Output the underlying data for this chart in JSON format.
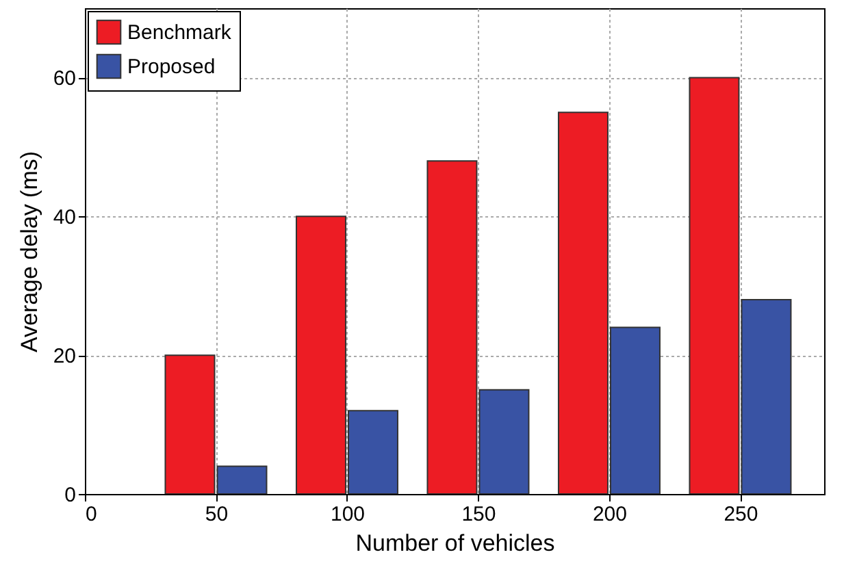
{
  "chart_data": {
    "type": "bar",
    "xlabel": "Number of vehicles",
    "ylabel": "Average delay (ms)",
    "x": [
      50,
      100,
      150,
      200,
      250
    ],
    "series": [
      {
        "name": "Benchmark",
        "color": "#ed1c24",
        "values": [
          20,
          40,
          48,
          55,
          60
        ]
      },
      {
        "name": "Proposed",
        "color": "#3953a4",
        "values": [
          4,
          12,
          15,
          24,
          28
        ]
      }
    ],
    "xlim": [
      0,
      282
    ],
    "xticks": [
      0,
      50,
      100,
      150,
      200,
      250
    ],
    "ylim": [
      0,
      70
    ],
    "yticks": [
      0,
      20,
      40,
      60
    ],
    "grid": true,
    "legend": "top left"
  }
}
